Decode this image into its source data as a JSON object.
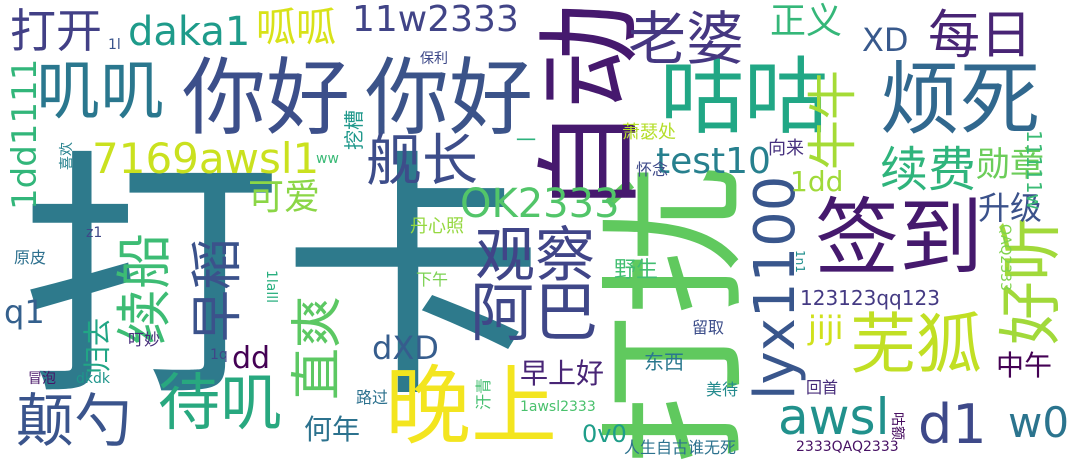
{
  "words": [
    {
      "text": "打卡",
      "color": "#2e7a8c"
    },
    {
      "text": "打扰",
      "color": "#60c95e"
    },
    {
      "text": "自动",
      "color": "#46196e"
    },
    {
      "text": "你好",
      "color": "#3c4f8a"
    },
    {
      "text": "你好",
      "color": "#3b5389"
    },
    {
      "text": "签到",
      "color": "#45196d"
    },
    {
      "text": "咕咕",
      "color": "#21a785"
    },
    {
      "text": "烦死",
      "color": "#31688e"
    },
    {
      "text": "晚上",
      "color": "#f3e51f"
    },
    {
      "text": "芜狐",
      "color": "#c1df24"
    },
    {
      "text": "lyx1100",
      "color": "#39568c"
    },
    {
      "text": "好听",
      "color": "#a1d93a"
    },
    {
      "text": "阿巴",
      "color": "#3f4788"
    },
    {
      "text": "观察",
      "color": "#404588"
    },
    {
      "text": "老婆",
      "color": "#453781"
    },
    {
      "text": "叽叽",
      "color": "#2a778e"
    },
    {
      "text": "待叽",
      "color": "#28a87f"
    },
    {
      "text": "颠勺",
      "color": "#3a548c"
    },
    {
      "text": "续船",
      "color": "#3dbc74"
    },
    {
      "text": "直爽",
      "color": "#5cc863"
    },
    {
      "text": "早稻",
      "color": "#3b528b"
    },
    {
      "text": "舰长",
      "color": "#3d4d8a"
    },
    {
      "text": "续费",
      "color": "#2fb47c"
    },
    {
      "text": "每日",
      "color": "#482475"
    },
    {
      "text": "牛牛",
      "color": "#a5db36"
    },
    {
      "text": "awsl",
      "color": "#21918c"
    },
    {
      "text": "d1",
      "color": "#3e4989"
    },
    {
      "text": "w0",
      "color": "#2b748e"
    },
    {
      "text": "7169awsl1",
      "color": "#cae11f"
    },
    {
      "text": "OK2333",
      "color": "#52c569"
    },
    {
      "text": "11w2333",
      "color": "#414487"
    },
    {
      "text": "daka1",
      "color": "#1e9b8a"
    },
    {
      "text": "呱呱",
      "color": "#d8e219"
    },
    {
      "text": "打开",
      "color": "#424086"
    },
    {
      "text": "test10",
      "color": "#27808e"
    },
    {
      "text": "正义",
      "color": "#35b779"
    },
    {
      "text": "XD",
      "color": "#38598c"
    },
    {
      "text": "勋章",
      "color": "#6ccd5a"
    },
    {
      "text": "1dd1111",
      "color": "#32b67a"
    },
    {
      "text": "可爱",
      "color": "#8bd646"
    },
    {
      "text": "1dd",
      "color": "#a0da39"
    },
    {
      "text": "升级",
      "color": "#3b528b"
    },
    {
      "text": "dXD",
      "color": "#365d8d"
    },
    {
      "text": "jiji",
      "color": "#d0e11c"
    },
    {
      "text": "早上好",
      "color": "#482576"
    },
    {
      "text": "归去",
      "color": "#21a685"
    },
    {
      "text": "q1",
      "color": "#34608d"
    },
    {
      "text": "dd",
      "color": "#440154"
    },
    {
      "text": "中午",
      "color": "#440154"
    },
    {
      "text": "何年",
      "color": "#2c728e"
    },
    {
      "text": "0v0",
      "color": "#1e9d89"
    },
    {
      "text": "123123qq123",
      "color": "#443a83"
    },
    {
      "text": "11111w",
      "color": "#3bbb75"
    },
    {
      "text": "野生",
      "color": "#42be71"
    },
    {
      "text": "萧瑟处",
      "color": "#b5de2b"
    },
    {
      "text": "挖槽",
      "color": "#1f988b"
    },
    {
      "text": "向来",
      "color": "#46307e"
    },
    {
      "text": "怀念",
      "color": "#3e4a89"
    },
    {
      "text": "丹心照",
      "color": "#95d840"
    },
    {
      "text": "东西",
      "color": "#2a788e"
    },
    {
      "text": "路过",
      "color": "#2c718e"
    },
    {
      "text": "汗青",
      "color": "#44bf70"
    },
    {
      "text": "回首",
      "color": "#472c7a"
    },
    {
      "text": "美待",
      "color": "#238a8d"
    },
    {
      "text": "留取",
      "color": "#3d4e8a"
    },
    {
      "text": "下午",
      "color": "#7ad151"
    },
    {
      "text": "QAQ2333",
      "color": "#7fd34e"
    },
    {
      "text": "1lalll",
      "color": "#29af7f"
    },
    {
      "text": "保利",
      "color": "#3e4989"
    },
    {
      "text": "喜欢",
      "color": "#26828e"
    },
    {
      "text": "ww",
      "color": "#3aba76"
    },
    {
      "text": "z1",
      "color": "#3f4788"
    },
    {
      "text": "原皮",
      "color": "#2d708e"
    },
    {
      "text": "叮妙",
      "color": "#472d7b"
    },
    {
      "text": "1q",
      "color": "#404688"
    },
    {
      "text": "冒泡",
      "color": "#481668"
    },
    {
      "text": "dkdk",
      "color": "#1f958b"
    },
    {
      "text": "1awsl2333",
      "color": "#4ac16d"
    },
    {
      "text": "人生自古谁无死",
      "color": "#2c728e"
    },
    {
      "text": "2333QAQ2333",
      "color": "#471164"
    },
    {
      "text": "咕额",
      "color": "#470d60"
    },
    {
      "text": "1n1",
      "color": "#218f8d"
    },
    {
      "text": "1l",
      "color": "#3a548c"
    },
    {
      "text": "一",
      "color": "#2db27d"
    }
  ]
}
